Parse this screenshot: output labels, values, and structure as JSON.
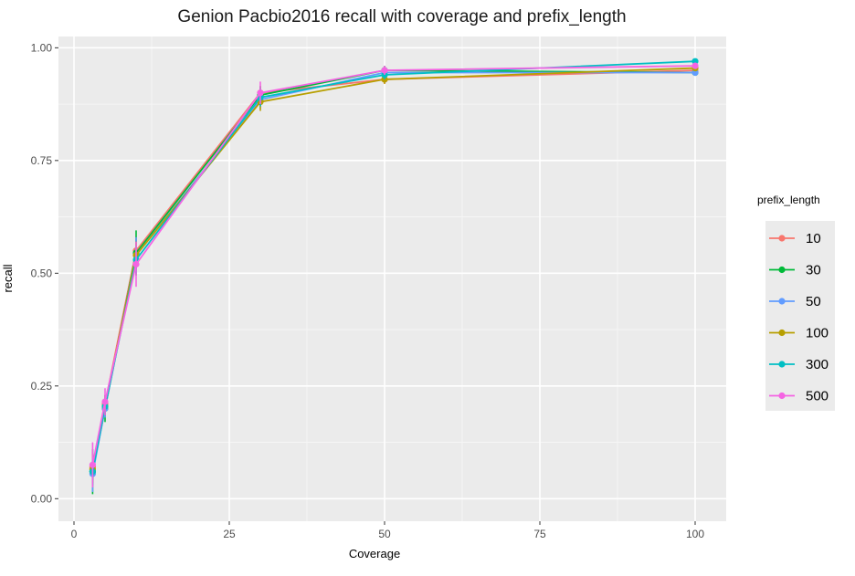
{
  "chart_data": {
    "type": "line",
    "title": "Genion Pacbio2016 recall with coverage and prefix_length",
    "xlabel": "Coverage",
    "ylabel": "recall",
    "xlim": [
      -2.5,
      105
    ],
    "ylim": [
      -0.05,
      1.025
    ],
    "x_ticks": [
      0,
      25,
      50,
      75,
      100
    ],
    "x_tick_labels": [
      "0",
      "25",
      "50",
      "75",
      "100"
    ],
    "y_ticks": [
      0,
      0.25,
      0.5,
      0.75,
      1.0
    ],
    "y_tick_labels": [
      "0.00",
      "0.25",
      "0.50",
      "0.75",
      "1.00"
    ],
    "grid": true,
    "legend": {
      "title": "prefix_length",
      "position": "right"
    },
    "x": [
      3,
      5,
      10,
      30,
      50,
      100
    ],
    "series": [
      {
        "name": "10",
        "color": "#F8766D",
        "values": [
          0.07,
          0.21,
          0.55,
          0.9,
          0.93,
          0.95
        ],
        "err": [
          0.03,
          0.02,
          0.03,
          0.015,
          0.01,
          0.005
        ]
      },
      {
        "name": "30",
        "color": "#00BA38",
        "values": [
          0.06,
          0.2,
          0.545,
          0.895,
          0.95,
          0.945
        ],
        "err": [
          0.05,
          0.03,
          0.05,
          0.02,
          0.01,
          0.005
        ]
      },
      {
        "name": "50",
        "color": "#619CFF",
        "values": [
          0.055,
          0.2,
          0.54,
          0.885,
          0.945,
          0.945
        ],
        "err": [
          0.04,
          0.02,
          0.04,
          0.02,
          0.01,
          0.005
        ]
      },
      {
        "name": "100",
        "color": "#B79F00",
        "values": [
          0.065,
          0.205,
          0.54,
          0.88,
          0.93,
          0.955
        ],
        "err": [
          0.03,
          0.02,
          0.03,
          0.02,
          0.01,
          0.005
        ]
      },
      {
        "name": "300",
        "color": "#00BFC4",
        "values": [
          0.06,
          0.205,
          0.53,
          0.89,
          0.94,
          0.97
        ],
        "err": [
          0.03,
          0.02,
          0.03,
          0.02,
          0.01,
          0.005
        ]
      },
      {
        "name": "500",
        "color": "#F564E3",
        "values": [
          0.075,
          0.215,
          0.52,
          0.9,
          0.95,
          0.96
        ],
        "err": [
          0.05,
          0.03,
          0.05,
          0.025,
          0.01,
          0.005
        ]
      }
    ]
  }
}
